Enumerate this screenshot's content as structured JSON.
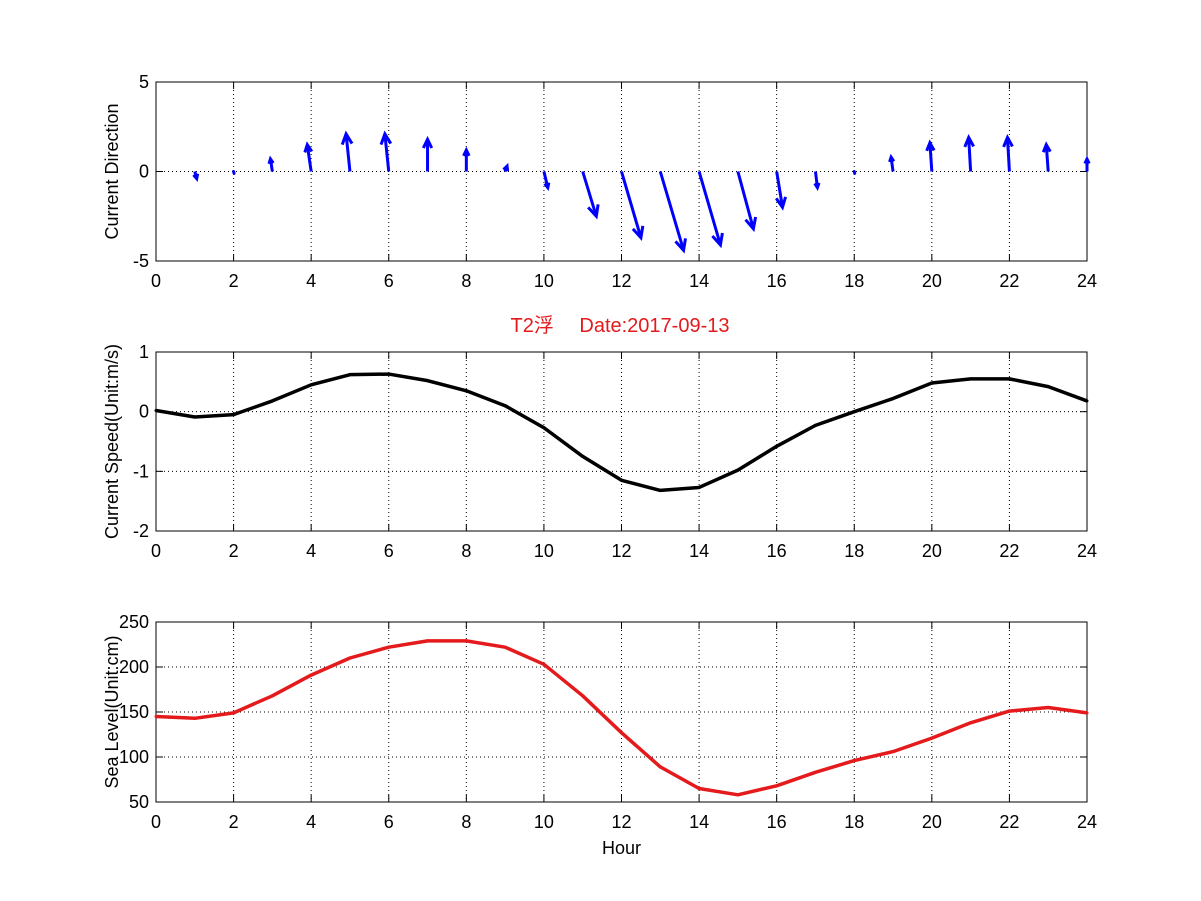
{
  "figure": {
    "title": "T2浮　 Date:2017-09-13",
    "title_color": "#e41a1c",
    "background": "#ffffff"
  },
  "chart_data": [
    {
      "type": "quiver",
      "ylabel": "Current Direction",
      "xlabel": "",
      "xlim": [
        0,
        24
      ],
      "ylim": [
        -5,
        5
      ],
      "xticks": [
        0,
        2,
        4,
        6,
        8,
        10,
        12,
        14,
        16,
        18,
        20,
        22,
        24
      ],
      "yticks": [
        -5,
        0,
        5
      ],
      "grid": true,
      "color": "#0000ff",
      "arrows": [
        {
          "x": 1,
          "u": 0.05,
          "v": -0.4
        },
        {
          "x": 2,
          "u": 0.0,
          "v": -0.1
        },
        {
          "x": 3,
          "u": -0.05,
          "v": 0.7
        },
        {
          "x": 4,
          "u": -0.1,
          "v": 1.5
        },
        {
          "x": 5,
          "u": -0.1,
          "v": 2.1
        },
        {
          "x": 6,
          "u": -0.1,
          "v": 2.1
        },
        {
          "x": 7,
          "u": 0.0,
          "v": 1.8
        },
        {
          "x": 8,
          "u": 0.0,
          "v": 1.2
        },
        {
          "x": 9,
          "u": 0.05,
          "v": 0.3
        },
        {
          "x": 10,
          "u": 0.1,
          "v": -0.9
        },
        {
          "x": 11,
          "u": 0.35,
          "v": -2.5
        },
        {
          "x": 12,
          "u": 0.5,
          "v": -3.7
        },
        {
          "x": 13,
          "u": 0.6,
          "v": -4.4
        },
        {
          "x": 14,
          "u": 0.55,
          "v": -4.1
        },
        {
          "x": 15,
          "u": 0.4,
          "v": -3.2
        },
        {
          "x": 16,
          "u": 0.15,
          "v": -2.0
        },
        {
          "x": 17,
          "u": 0.05,
          "v": -0.9
        },
        {
          "x": 18,
          "u": 0.0,
          "v": -0.1
        },
        {
          "x": 19,
          "u": -0.05,
          "v": 0.8
        },
        {
          "x": 20,
          "u": -0.05,
          "v": 1.6
        },
        {
          "x": 21,
          "u": -0.05,
          "v": 1.9
        },
        {
          "x": 22,
          "u": -0.05,
          "v": 1.9
        },
        {
          "x": 23,
          "u": -0.05,
          "v": 1.5
        },
        {
          "x": 24,
          "u": 0.0,
          "v": 0.7
        }
      ]
    },
    {
      "type": "line",
      "ylabel": "Current Speed(Unit:m/s)",
      "xlabel": "",
      "xlim": [
        0,
        24
      ],
      "ylim": [
        -2,
        1
      ],
      "xticks": [
        0,
        2,
        4,
        6,
        8,
        10,
        12,
        14,
        16,
        18,
        20,
        22,
        24
      ],
      "yticks": [
        -2,
        -1,
        0,
        1
      ],
      "grid": true,
      "color": "#000000",
      "x": [
        0,
        1,
        2,
        3,
        4,
        5,
        6,
        7,
        8,
        9,
        10,
        11,
        12,
        13,
        14,
        15,
        16,
        17,
        18,
        19,
        20,
        21,
        22,
        23,
        24
      ],
      "y": [
        0.02,
        -0.09,
        -0.05,
        0.18,
        0.45,
        0.62,
        0.63,
        0.52,
        0.35,
        0.1,
        -0.27,
        -0.75,
        -1.15,
        -1.32,
        -1.27,
        -0.98,
        -0.58,
        -0.23,
        0.0,
        0.22,
        0.48,
        0.55,
        0.55,
        0.42,
        0.18
      ]
    },
    {
      "type": "line",
      "ylabel": "Sea Level(Unit:cm)",
      "xlabel": "Hour",
      "xlim": [
        0,
        24
      ],
      "ylim": [
        50,
        250
      ],
      "xticks": [
        0,
        2,
        4,
        6,
        8,
        10,
        12,
        14,
        16,
        18,
        20,
        22,
        24
      ],
      "yticks": [
        50,
        100,
        150,
        200,
        250
      ],
      "grid": true,
      "color": "#e41a1c",
      "x": [
        0,
        1,
        2,
        3,
        4,
        5,
        6,
        7,
        8,
        9,
        10,
        11,
        12,
        13,
        14,
        15,
        16,
        17,
        18,
        19,
        20,
        21,
        22,
        23,
        24
      ],
      "y": [
        145,
        143,
        149,
        168,
        191,
        210,
        222,
        229,
        229,
        222,
        203,
        168,
        127,
        89,
        65,
        58,
        68,
        83,
        96,
        106,
        121,
        138,
        151,
        155,
        149
      ]
    }
  ]
}
